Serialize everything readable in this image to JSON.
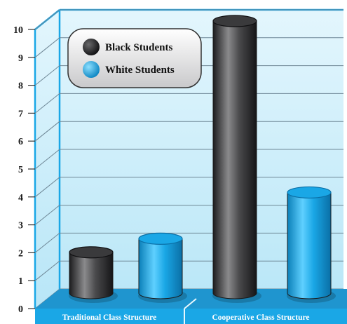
{
  "chart_data": {
    "type": "bar",
    "title": "",
    "xlabel": "",
    "ylabel": "",
    "ylim": [
      0,
      10
    ],
    "yticks": [
      0,
      1,
      2,
      3,
      4,
      5,
      6,
      7,
      8,
      9,
      10
    ],
    "grid": true,
    "legend_position": "top-left",
    "categories": [
      "Traditional Class Structure",
      "Cooperative Class Structure"
    ],
    "series": [
      {
        "name": "Black Students",
        "values": [
          1.5,
          10.0
        ],
        "color": "#3a3a3c"
      },
      {
        "name": "White Students",
        "values": [
          2.0,
          3.7
        ],
        "color": "#1aa7e6"
      }
    ]
  }
}
